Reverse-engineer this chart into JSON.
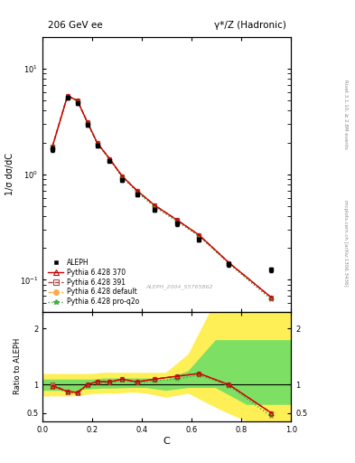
{
  "title_left": "206 GeV ee",
  "title_right": "γ*/Z (Hadronic)",
  "ylabel_main": "1/σ dσ/dC",
  "ylabel_ratio": "Ratio to ALEPH",
  "xlabel": "C",
  "rivet_label": "Rivet 3.1.10, ≥ 2.8M events",
  "analysis_label": "ALEPH_2004_S5765862",
  "mcplots_label": "mcplots.cern.ch [arXiv:1306.3436]",
  "aleph_x": [
    0.04,
    0.1,
    0.14,
    0.18,
    0.22,
    0.27,
    0.32,
    0.38,
    0.45,
    0.54,
    0.63,
    0.75,
    0.92
  ],
  "aleph_y": [
    1.72,
    5.3,
    4.7,
    2.95,
    1.88,
    1.35,
    0.88,
    0.64,
    0.46,
    0.34,
    0.24,
    0.14,
    0.125
  ],
  "aleph_yerr": [
    0.1,
    0.18,
    0.15,
    0.1,
    0.07,
    0.05,
    0.03,
    0.025,
    0.018,
    0.014,
    0.01,
    0.007,
    0.006
  ],
  "pythia_x": [
    0.04,
    0.1,
    0.14,
    0.18,
    0.22,
    0.27,
    0.32,
    0.38,
    0.45,
    0.54,
    0.63,
    0.75,
    0.92
  ],
  "p370_y": [
    1.85,
    5.55,
    5.0,
    3.12,
    1.98,
    1.4,
    0.96,
    0.7,
    0.51,
    0.37,
    0.265,
    0.145,
    0.068
  ],
  "p391_y": [
    1.85,
    5.55,
    5.0,
    3.12,
    1.98,
    1.4,
    0.96,
    0.7,
    0.51,
    0.37,
    0.265,
    0.145,
    0.068
  ],
  "pdef_y": [
    1.85,
    5.55,
    5.0,
    3.12,
    1.98,
    1.4,
    0.96,
    0.7,
    0.51,
    0.37,
    0.265,
    0.145,
    0.068
  ],
  "ppro_y": [
    1.82,
    5.48,
    4.93,
    3.08,
    1.95,
    1.37,
    0.94,
    0.68,
    0.49,
    0.36,
    0.258,
    0.142,
    0.065
  ],
  "ratio_370": [
    0.98,
    0.88,
    0.86,
    1.0,
    1.06,
    1.05,
    1.1,
    1.05,
    1.1,
    1.15,
    1.2,
    1.0,
    0.5
  ],
  "ratio_391": [
    1.0,
    0.88,
    0.87,
    1.0,
    1.06,
    1.05,
    1.1,
    1.05,
    1.1,
    1.15,
    1.2,
    1.0,
    0.5
  ],
  "ratio_def": [
    1.0,
    0.88,
    0.87,
    1.0,
    1.06,
    1.05,
    1.1,
    1.05,
    1.1,
    1.15,
    1.2,
    1.0,
    0.5
  ],
  "ratio_pro": [
    0.96,
    0.86,
    0.84,
    0.98,
    1.04,
    1.02,
    1.08,
    1.02,
    1.07,
    1.1,
    1.17,
    0.98,
    0.44
  ],
  "band_x_edges": [
    0.0,
    0.075,
    0.12,
    0.16,
    0.2,
    0.245,
    0.295,
    0.355,
    0.415,
    0.495,
    0.585,
    0.695,
    0.82,
    1.0
  ],
  "green_band_lo": [
    0.9,
    0.9,
    0.9,
    0.92,
    0.93,
    0.94,
    0.94,
    0.95,
    0.95,
    0.9,
    0.95,
    0.95,
    0.65,
    0.65
  ],
  "green_band_hi": [
    1.1,
    1.1,
    1.1,
    1.1,
    1.1,
    1.12,
    1.12,
    1.12,
    1.12,
    1.1,
    1.25,
    1.8,
    1.8,
    1.8
  ],
  "yellow_band_lo": [
    0.8,
    0.8,
    0.8,
    0.82,
    0.84,
    0.85,
    0.85,
    0.87,
    0.85,
    0.78,
    0.85,
    0.6,
    0.35,
    0.35
  ],
  "yellow_band_hi": [
    1.2,
    1.2,
    1.2,
    1.2,
    1.2,
    1.22,
    1.22,
    1.22,
    1.22,
    1.22,
    1.55,
    2.5,
    2.5,
    2.5
  ],
  "color_370": "#cc0000",
  "color_391": "#aa4444",
  "color_def": "#ffaa44",
  "color_pro": "#44aa44",
  "color_aleph": "#000000",
  "color_green_band": "#66dd66",
  "color_yellow_band": "#ffee44",
  "main_ylim_log": [
    0.05,
    20.0
  ],
  "ratio_ylim": [
    0.35,
    2.3
  ],
  "xlim": [
    0.0,
    1.0
  ]
}
